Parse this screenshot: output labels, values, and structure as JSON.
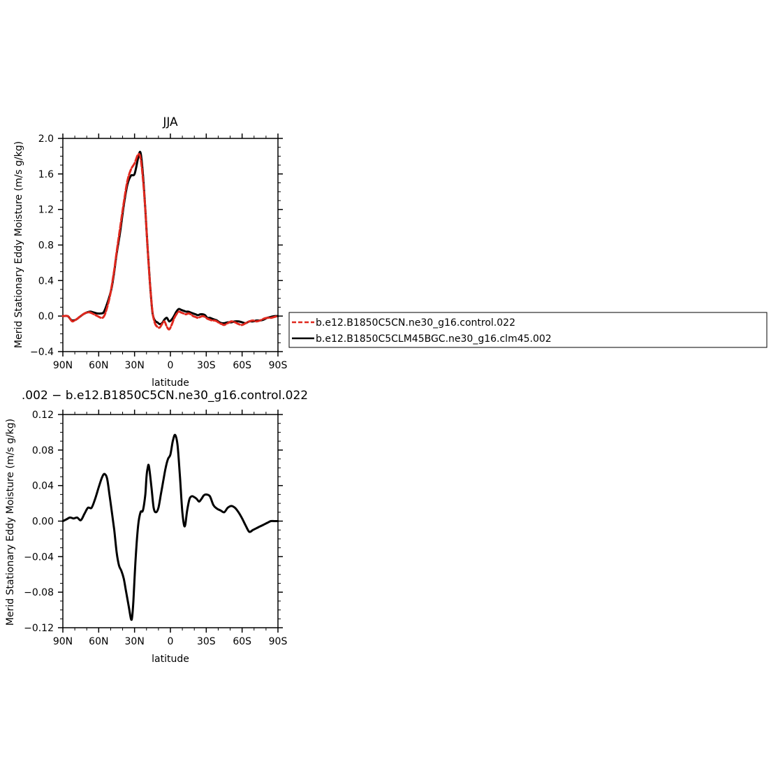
{
  "colors": {
    "control": "#e0281e",
    "clm45": "#000000",
    "difference": "#000000"
  },
  "legend": {
    "entries": [
      {
        "label": "b.e12.B1850C5CN.ne30_g16.control.022",
        "color": "#e0281e",
        "style": "dashed"
      },
      {
        "label": "b.e12.B1850C5CLM45BGC.ne30_g16.clm45.002",
        "color": "#000000",
        "style": "solid"
      }
    ]
  },
  "chart_data": [
    {
      "type": "line",
      "title": "JJA",
      "xlabel": "latitude",
      "ylabel": "Merid Stationary Eddy Moisture (m/s g/kg)",
      "xlim": [
        90,
        -90
      ],
      "ylim": [
        -0.4,
        2.0
      ],
      "xticks": [
        {
          "value": 90,
          "label": "90N"
        },
        {
          "value": 60,
          "label": "60N"
        },
        {
          "value": 30,
          "label": "30N"
        },
        {
          "value": 0,
          "label": "0"
        },
        {
          "value": -30,
          "label": "30S"
        },
        {
          "value": -60,
          "label": "60S"
        },
        {
          "value": -90,
          "label": "90S"
        }
      ],
      "yticks": [
        {
          "value": 2.0,
          "label": "2.0"
        },
        {
          "value": 1.6,
          "label": "1.6"
        },
        {
          "value": 1.2,
          "label": "1.2"
        },
        {
          "value": 0.8,
          "label": "0.8"
        },
        {
          "value": 0.4,
          "label": "0.4"
        },
        {
          "value": 0.0,
          "label": "0.0"
        },
        {
          "value": -0.4,
          "label": "−0.4"
        }
      ],
      "x": [
        90,
        86,
        84,
        82,
        79,
        76,
        73,
        70,
        67,
        64,
        61,
        58,
        56,
        54,
        51,
        49,
        47,
        45,
        42,
        39,
        36,
        33,
        30,
        27,
        25,
        23,
        21,
        19,
        17,
        15,
        13,
        11,
        9,
        7,
        5,
        3,
        1,
        -1,
        -3,
        -5,
        -7,
        -9,
        -11,
        -13,
        -15,
        -17,
        -19,
        -21,
        -23,
        -25,
        -27,
        -29,
        -31,
        -33,
        -35,
        -37,
        -39,
        -41,
        -43,
        -45,
        -48,
        -51,
        -54,
        -57,
        -60,
        -63,
        -66,
        -69,
        -72,
        -75,
        -78,
        -81,
        -84,
        -87,
        -90
      ],
      "series": [
        {
          "name": "b.e12.B1850C5CN.ne30_g16.control.022",
          "color": "#e0281e",
          "style": "dashed",
          "values": [
            0.0,
            0.0,
            -0.03,
            -0.06,
            -0.04,
            -0.01,
            0.02,
            0.04,
            0.04,
            0.02,
            0.0,
            -0.02,
            -0.01,
            0.05,
            0.2,
            0.35,
            0.52,
            0.72,
            1.0,
            1.28,
            1.52,
            1.65,
            1.72,
            1.82,
            1.78,
            1.55,
            1.2,
            0.75,
            0.35,
            0.05,
            -0.08,
            -0.12,
            -0.13,
            -0.09,
            -0.06,
            -0.12,
            -0.15,
            -0.1,
            -0.03,
            0.02,
            0.05,
            0.04,
            0.03,
            0.02,
            0.03,
            0.02,
            0.0,
            -0.01,
            -0.02,
            -0.01,
            0.0,
            -0.01,
            -0.03,
            -0.04,
            -0.05,
            -0.05,
            -0.06,
            -0.08,
            -0.09,
            -0.1,
            -0.08,
            -0.06,
            -0.07,
            -0.09,
            -0.1,
            -0.08,
            -0.06,
            -0.05,
            -0.06,
            -0.05,
            -0.03,
            -0.02,
            -0.02,
            -0.01,
            0.0
          ]
        },
        {
          "name": "b.e12.B1850C5CLM45BGC.ne30_g16.clm45.002",
          "color": "#000000",
          "style": "solid",
          "values": [
            0.0,
            0.0,
            -0.03,
            -0.05,
            -0.04,
            -0.01,
            0.02,
            0.04,
            0.05,
            0.04,
            0.03,
            0.03,
            0.04,
            0.1,
            0.22,
            0.33,
            0.5,
            0.7,
            0.95,
            1.25,
            1.48,
            1.58,
            1.6,
            1.78,
            1.84,
            1.6,
            1.2,
            0.75,
            0.35,
            0.04,
            -0.05,
            -0.07,
            -0.09,
            -0.08,
            -0.04,
            -0.02,
            -0.06,
            -0.04,
            0.0,
            0.05,
            0.08,
            0.07,
            0.06,
            0.05,
            0.05,
            0.04,
            0.03,
            0.02,
            0.01,
            0.02,
            0.02,
            0.01,
            -0.02,
            -0.02,
            -0.03,
            -0.04,
            -0.05,
            -0.07,
            -0.08,
            -0.08,
            -0.07,
            -0.07,
            -0.06,
            -0.06,
            -0.07,
            -0.08,
            -0.06,
            -0.06,
            -0.05,
            -0.05,
            -0.04,
            -0.02,
            -0.01,
            0.0,
            0.0
          ]
        }
      ]
    },
    {
      "type": "line",
      "title": ".002 − b.e12.B1850C5CN.ne30_g16.control.022",
      "xlabel": "latitude",
      "ylabel": "Merid Stationary Eddy Moisture (m/s g/kg)",
      "xlim": [
        90,
        -90
      ],
      "ylim": [
        -0.12,
        0.12
      ],
      "xticks": [
        {
          "value": 90,
          "label": "90N"
        },
        {
          "value": 60,
          "label": "60N"
        },
        {
          "value": 30,
          "label": "30N"
        },
        {
          "value": 0,
          "label": "0"
        },
        {
          "value": -30,
          "label": "30S"
        },
        {
          "value": -60,
          "label": "60S"
        },
        {
          "value": -90,
          "label": "90S"
        }
      ],
      "yticks": [
        {
          "value": 0.12,
          "label": "0.12"
        },
        {
          "value": 0.08,
          "label": "0.08"
        },
        {
          "value": 0.04,
          "label": "0.04"
        },
        {
          "value": 0.0,
          "label": "0.00"
        },
        {
          "value": -0.04,
          "label": "−0.04"
        },
        {
          "value": -0.08,
          "label": "−0.08"
        },
        {
          "value": -0.12,
          "label": "−0.12"
        }
      ],
      "x": [
        90,
        87,
        84,
        81,
        78,
        75,
        72,
        69,
        66,
        63,
        60,
        57,
        55,
        53,
        51,
        49,
        47,
        45,
        43,
        41,
        39,
        37,
        35,
        33,
        32,
        31,
        29,
        27,
        25,
        23,
        21,
        20,
        19,
        18,
        16,
        14,
        12,
        10,
        8,
        6,
        4,
        2,
        0,
        -2,
        -4,
        -6,
        -8,
        -10,
        -12,
        -14,
        -16,
        -18,
        -20,
        -22,
        -24,
        -26,
        -28,
        -30,
        -33,
        -36,
        -39,
        -42,
        -45,
        -48,
        -51,
        -54,
        -57,
        -60,
        -63,
        -66,
        -69,
        -72,
        -75,
        -78,
        -81,
        -84,
        -87,
        -90
      ],
      "series": [
        {
          "name": "",
          "color": "#000000",
          "style": "solid",
          "values": [
            0.0,
            0.002,
            0.004,
            0.003,
            0.004,
            0.001,
            0.008,
            0.015,
            0.015,
            0.025,
            0.038,
            0.05,
            0.053,
            0.048,
            0.03,
            0.01,
            -0.01,
            -0.035,
            -0.05,
            -0.056,
            -0.065,
            -0.08,
            -0.095,
            -0.11,
            -0.108,
            -0.09,
            -0.04,
            -0.005,
            0.01,
            0.012,
            0.03,
            0.05,
            0.06,
            0.062,
            0.04,
            0.015,
            0.01,
            0.015,
            0.03,
            0.045,
            0.06,
            0.07,
            0.075,
            0.09,
            0.097,
            0.085,
            0.05,
            0.01,
            -0.006,
            0.012,
            0.025,
            0.028,
            0.027,
            0.025,
            0.022,
            0.025,
            0.029,
            0.03,
            0.028,
            0.018,
            0.014,
            0.012,
            0.01,
            0.015,
            0.017,
            0.015,
            0.01,
            0.003,
            -0.005,
            -0.012,
            -0.01,
            -0.008,
            -0.006,
            -0.004,
            -0.002,
            0.0,
            0.0,
            0.0
          ]
        }
      ]
    }
  ]
}
